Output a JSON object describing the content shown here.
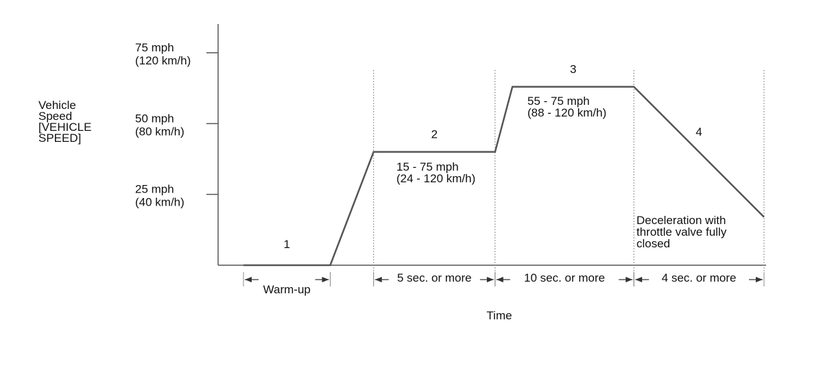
{
  "chart_data": {
    "type": "line",
    "ylabel": [
      "Vehicle",
      "Speed",
      "[VEHICLE",
      "SPEED]"
    ],
    "xlabel": "Time",
    "ylim": [
      0,
      85
    ],
    "yticks": [
      {
        "value": 75,
        "label": [
          "75 mph",
          "(120 km/h)"
        ]
      },
      {
        "value": 50,
        "label": [
          "50 mph",
          "(80 km/h)"
        ]
      },
      {
        "value": 25,
        "label": [
          "25 mph",
          "(40 km/h)"
        ]
      }
    ],
    "series": [
      {
        "line_color": "#555555",
        "points": [
          {
            "t": 0.0,
            "v": 0
          },
          {
            "t": 1.0,
            "v": 0
          },
          {
            "t": 1.5,
            "v": 40
          },
          {
            "t": 2.9,
            "v": 40
          },
          {
            "t": 3.1,
            "v": 63
          },
          {
            "t": 4.5,
            "v": 63
          },
          {
            "t": 6.0,
            "v": 17
          }
        ]
      }
    ],
    "phase_boundaries": [
      1.5,
      2.9,
      4.5,
      6.0
    ],
    "phases": [
      {
        "number": "1",
        "range": "",
        "duration": "Warm-up"
      },
      {
        "number": "2",
        "range": [
          "15 - 75 mph",
          "(24 - 120 km/h)"
        ],
        "duration": "5 sec. or more"
      },
      {
        "number": "3",
        "range": [
          "55 - 75 mph",
          "(88 - 120 km/h)"
        ],
        "duration": "10 sec. or more"
      },
      {
        "number": "4",
        "range": "",
        "duration": "4 sec. or more"
      }
    ],
    "annotations": [
      {
        "text": [
          "Deceleration with",
          "throttle valve fully",
          "closed"
        ]
      }
    ],
    "grid": false,
    "legend": "none"
  }
}
